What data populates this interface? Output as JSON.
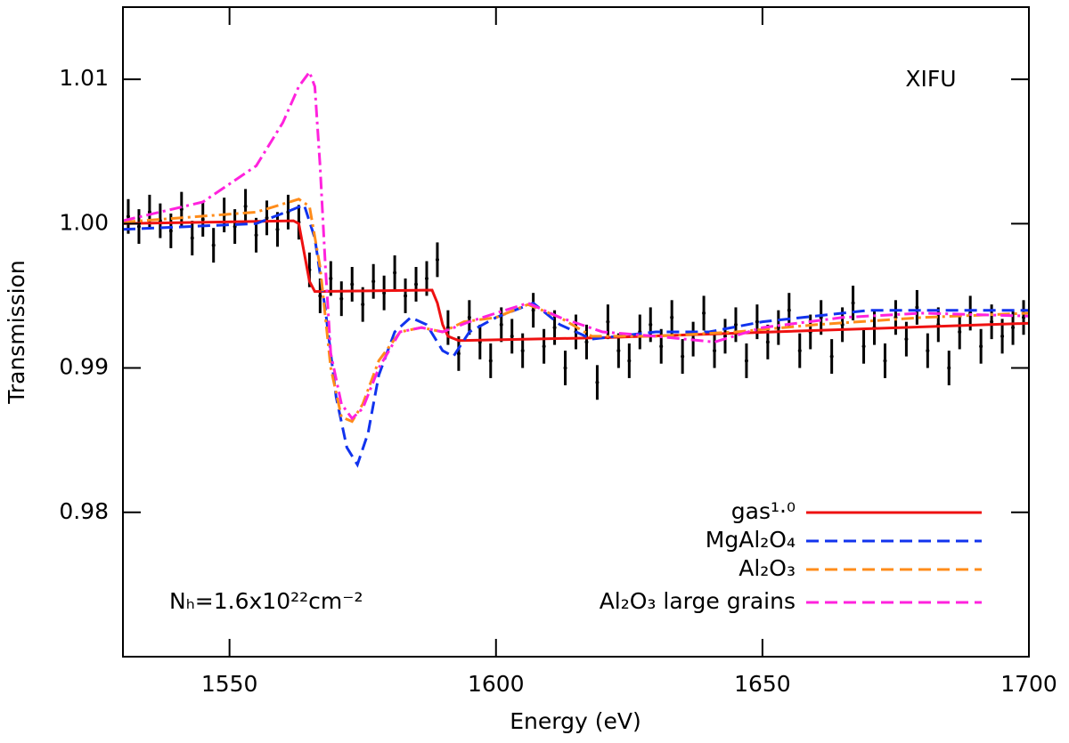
{
  "chart_data": {
    "type": "line",
    "xlabel": "Energy (eV)",
    "ylabel": "Transmission",
    "annotations": [
      "XIFU",
      "Nₕ=1.6x10²²cm⁻²"
    ],
    "xlim": [
      1530,
      1700
    ],
    "xticks": [
      1550,
      1600,
      1650,
      1700
    ],
    "ylim": [
      0.97,
      1.015
    ],
    "yticks": [
      0.98,
      0.99,
      {
        "value": 1,
        "label": "1.00"
      },
      1.01
    ],
    "legend": "lower right",
    "series": [
      {
        "name": "gas¹·⁰",
        "color": "#ee1111",
        "linestyle": "solid",
        "x": [
          1530,
          1562,
          1563,
          1564,
          1565,
          1566,
          1588,
          1589,
          1590,
          1591,
          1593,
          1620,
          1700
        ],
        "values": [
          1.0,
          1.0002,
          1.0,
          0.998,
          0.996,
          0.9953,
          0.9954,
          0.9945,
          0.993,
          0.9922,
          0.9919,
          0.9921,
          0.9931
        ]
      },
      {
        "name": "MgAl₂O₄",
        "color": "#1133ee",
        "linestyle": "dashed",
        "x": [
          1530,
          1555,
          1562,
          1564,
          1566,
          1568,
          1570,
          1572,
          1574,
          1576,
          1578,
          1581,
          1584,
          1587,
          1590,
          1592,
          1595,
          1600,
          1607,
          1612,
          1618,
          1630,
          1640,
          1650,
          1670,
          1700
        ],
        "values": [
          0.9996,
          1.0,
          1.001,
          1.0013,
          0.999,
          0.994,
          0.988,
          0.9845,
          0.9833,
          0.9855,
          0.9895,
          0.9925,
          0.9935,
          0.993,
          0.9912,
          0.9908,
          0.9925,
          0.9935,
          0.9945,
          0.993,
          0.992,
          0.9925,
          0.9925,
          0.9932,
          0.994,
          0.994
        ]
      },
      {
        "name": "Al₂O₃",
        "color": "#ff8c1a",
        "linestyle": "dashdot",
        "x": [
          1530,
          1555,
          1563,
          1565,
          1567,
          1569,
          1571,
          1573,
          1575,
          1578,
          1582,
          1586,
          1590,
          1594,
          1600,
          1606,
          1612,
          1618,
          1630,
          1645,
          1660,
          1680,
          1700
        ],
        "values": [
          1.0001,
          1.0008,
          1.0017,
          1.0012,
          0.997,
          0.99,
          0.9866,
          0.9863,
          0.9875,
          0.9905,
          0.9925,
          0.9928,
          0.9925,
          0.9932,
          0.9935,
          0.9944,
          0.9935,
          0.9922,
          0.9922,
          0.9925,
          0.993,
          0.9935,
          0.9938
        ]
      },
      {
        "name": "Al₂O₃ large grains",
        "color": "#ff22dd",
        "linestyle": "dashdot",
        "x": [
          1530,
          1545,
          1555,
          1560,
          1563,
          1565,
          1566,
          1567,
          1568,
          1569,
          1571,
          1573,
          1575,
          1578,
          1582,
          1586,
          1590,
          1595,
          1600,
          1606,
          1612,
          1620,
          1630,
          1641,
          1650,
          1665,
          1680,
          1700
        ],
        "values": [
          1.0002,
          1.0015,
          1.004,
          1.007,
          1.0095,
          1.0105,
          1.0095,
          1.004,
          0.997,
          0.991,
          0.9875,
          0.9865,
          0.9872,
          0.99,
          0.9925,
          0.9928,
          0.9925,
          0.9932,
          0.9938,
          0.9945,
          0.9935,
          0.9925,
          0.9922,
          0.9918,
          0.9928,
          0.9935,
          0.9938,
          0.9936
        ]
      }
    ],
    "points": {
      "color": "#000000",
      "yerr": 0.0012,
      "x": [
        1531,
        1533,
        1535,
        1537,
        1539,
        1541,
        1543,
        1545,
        1547,
        1549,
        1551,
        1553,
        1555,
        1557,
        1559,
        1561,
        1563,
        1565,
        1567,
        1569,
        1571,
        1573,
        1575,
        1577,
        1579,
        1581,
        1583,
        1585,
        1587,
        1589,
        1591,
        1593,
        1595,
        1597,
        1599,
        1601,
        1603,
        1605,
        1607,
        1609,
        1611,
        1613,
        1615,
        1617,
        1619,
        1621,
        1623,
        1625,
        1627,
        1629,
        1631,
        1633,
        1635,
        1637,
        1639,
        1641,
        1643,
        1645,
        1647,
        1649,
        1651,
        1653,
        1655,
        1657,
        1659,
        1661,
        1663,
        1665,
        1667,
        1669,
        1671,
        1673,
        1675,
        1677,
        1679,
        1681,
        1683,
        1685,
        1687,
        1689,
        1691,
        1693,
        1695,
        1697,
        1699
      ],
      "values": [
        1.0005,
        0.9998,
        1.0008,
        1.0002,
        0.9995,
        1.001,
        0.999,
        1.0003,
        0.9985,
        1.0006,
        0.9998,
        1.0012,
        0.9992,
        1.0004,
        0.9996,
        1.0008,
        1.0001,
        0.9968,
        0.995,
        0.9962,
        0.9948,
        0.9958,
        0.9944,
        0.996,
        0.9952,
        0.9966,
        0.995,
        0.9958,
        0.9962,
        0.9975,
        0.9928,
        0.991,
        0.9935,
        0.9918,
        0.9905,
        0.993,
        0.9922,
        0.9912,
        0.994,
        0.9915,
        0.9928,
        0.99,
        0.9925,
        0.9918,
        0.989,
        0.9932,
        0.9912,
        0.9905,
        0.9925,
        0.993,
        0.9915,
        0.9935,
        0.9908,
        0.992,
        0.9938,
        0.9912,
        0.9922,
        0.993,
        0.9905,
        0.9932,
        0.9918,
        0.9928,
        0.994,
        0.9912,
        0.9925,
        0.9935,
        0.9908,
        0.993,
        0.9945,
        0.9915,
        0.9928,
        0.9905,
        0.9935,
        0.992,
        0.9942,
        0.9912,
        0.993,
        0.99,
        0.9925,
        0.9938,
        0.9915,
        0.9932,
        0.9922,
        0.9928,
        0.9935
      ]
    }
  }
}
